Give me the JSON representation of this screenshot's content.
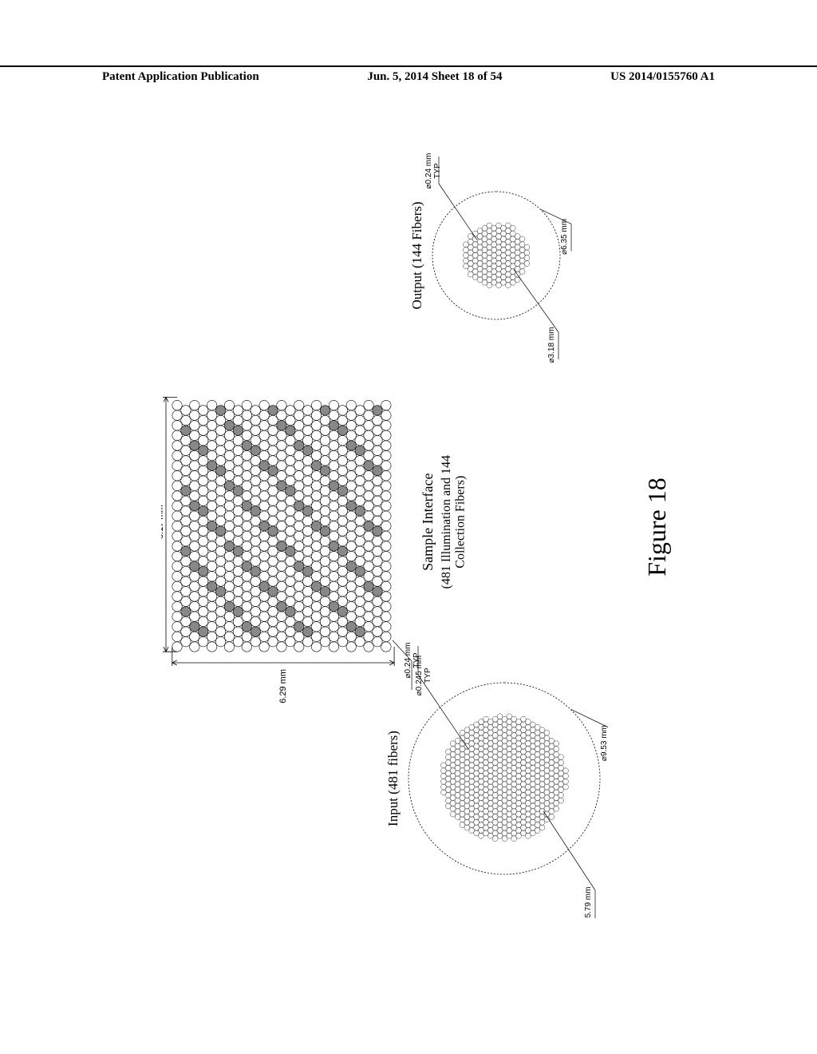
{
  "header": {
    "left": "Patent Application Publication",
    "center": "Jun. 5, 2014   Sheet 18 of 54",
    "right": "US 2014/0155760 A1"
  },
  "figure": {
    "caption": "Figure 18",
    "background_color": "#ffffff",
    "line_color": "#000000",
    "fiber_stroke": "#000000",
    "fiber_fill_light": "#ffffff",
    "fiber_fill_dark": "#888888",
    "grid": {
      "width_label": "6.17 mm",
      "height_label": "6.29 mm",
      "fiber_diameter_label": "⌀0.245 mm\nTYP",
      "cols": 25,
      "rows": 25,
      "circle_r": 6.2,
      "spacing": 12.6
    },
    "sample_interface": {
      "title": "Sample Interface",
      "subtitle": "(481 Illumination and 144\nCollection Fibers)"
    },
    "input": {
      "title": "Input (481 fibers)",
      "outer_diameter_label": "⌀9.53 mm",
      "inner_diameter_label": "⌀5.79 mm",
      "fiber_diameter_label": "⌀0.24 mm\nTYP",
      "outer_r": 120,
      "inner_r": 82,
      "fiber_r": 3.4
    },
    "output": {
      "title": "Output (144 Fibers)",
      "outer_diameter_label": "⌀6.35 mm",
      "inner_diameter_label": "⌀3.18 mm",
      "fiber_diameter_label": "⌀0.24 mm\nTYP",
      "outer_r": 80,
      "inner_r": 44,
      "fiber_r": 3.4
    }
  }
}
